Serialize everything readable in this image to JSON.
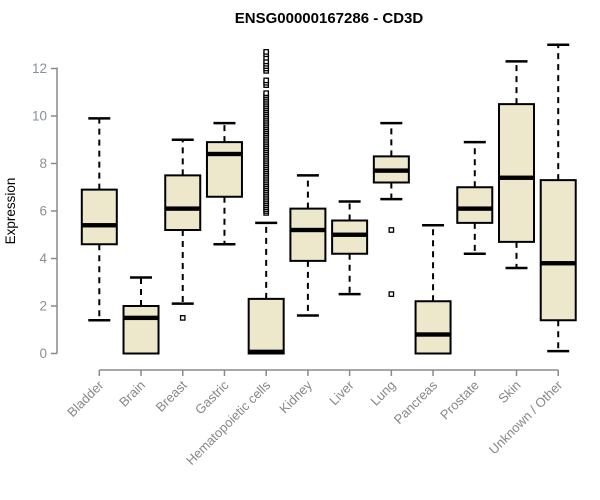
{
  "chart_data": {
    "type": "boxplot",
    "title": "ENSG00000167286 - CD3D",
    "ylabel": "Expression",
    "xlabel": "",
    "ylim": [
      0,
      13.2
    ],
    "y_ticks": [
      0,
      2,
      4,
      6,
      8,
      10,
      12
    ],
    "grid": false,
    "legend": "none",
    "categories": [
      "Bladder",
      "Brain",
      "Breast",
      "Gastric",
      "Hematopoietic cells",
      "Kidney",
      "Liver",
      "Lung",
      "Pancreas",
      "Prostate",
      "Skin",
      "Unknown / Other"
    ],
    "series": [
      {
        "name": "Bladder",
        "whisker_low": 1.4,
        "q1": 4.6,
        "median": 5.4,
        "q3": 6.9,
        "whisker_high": 9.9,
        "outliers": []
      },
      {
        "name": "Brain",
        "whisker_low": 0.0,
        "q1": 0.0,
        "median": 1.5,
        "q3": 2.0,
        "whisker_high": 3.2,
        "outliers": []
      },
      {
        "name": "Breast",
        "whisker_low": 2.1,
        "q1": 5.2,
        "median": 6.1,
        "q3": 7.5,
        "whisker_high": 9.0,
        "outliers": [
          1.5
        ]
      },
      {
        "name": "Gastric",
        "whisker_low": 4.6,
        "q1": 6.6,
        "median": 8.4,
        "q3": 8.9,
        "whisker_high": 9.7,
        "outliers": []
      },
      {
        "name": "Hematopoietic cells",
        "whisker_low": 0.0,
        "q1": 0.0,
        "median": 0.07,
        "q3": 2.3,
        "whisker_high": 5.5,
        "outliers": [
          5.92,
          6.0,
          6.08,
          6.16,
          6.24,
          6.32,
          6.4,
          6.48,
          6.56,
          6.64,
          6.72,
          6.8,
          6.88,
          6.96,
          7.04,
          7.12,
          7.2,
          7.28,
          7.36,
          7.44,
          7.52,
          7.6,
          7.68,
          7.76,
          7.84,
          7.92,
          8.0,
          8.08,
          8.16,
          8.24,
          8.32,
          8.4,
          8.48,
          8.56,
          8.64,
          8.72,
          8.8,
          8.88,
          8.96,
          9.04,
          9.12,
          9.2,
          9.28,
          9.36,
          9.44,
          9.52,
          9.6,
          9.68,
          9.76,
          9.84,
          9.92,
          10.0,
          10.08,
          10.16,
          10.24,
          10.32,
          10.4,
          10.48,
          10.56,
          10.64,
          10.72,
          10.8,
          10.88,
          10.96,
          11.3,
          11.4,
          11.5,
          11.9,
          12.0,
          12.1,
          12.2,
          12.3,
          12.45,
          12.6,
          12.7
        ]
      },
      {
        "name": "Kidney",
        "whisker_low": 1.6,
        "q1": 3.9,
        "median": 5.2,
        "q3": 6.1,
        "whisker_high": 7.5,
        "outliers": []
      },
      {
        "name": "Liver",
        "whisker_low": 2.5,
        "q1": 4.2,
        "median": 5.0,
        "q3": 5.6,
        "whisker_high": 6.4,
        "outliers": []
      },
      {
        "name": "Lung",
        "whisker_low": 6.5,
        "q1": 7.2,
        "median": 7.7,
        "q3": 8.3,
        "whisker_high": 9.7,
        "outliers": [
          5.2,
          2.5
        ]
      },
      {
        "name": "Pancreas",
        "whisker_low": 0.0,
        "q1": 0.0,
        "median": 0.8,
        "q3": 2.2,
        "whisker_high": 5.4,
        "outliers": []
      },
      {
        "name": "Prostate",
        "whisker_low": 4.2,
        "q1": 5.5,
        "median": 6.1,
        "q3": 7.0,
        "whisker_high": 8.9,
        "outliers": []
      },
      {
        "name": "Skin",
        "whisker_low": 3.6,
        "q1": 4.7,
        "median": 7.4,
        "q3": 10.5,
        "whisker_high": 12.3,
        "outliers": []
      },
      {
        "name": "Unknown / Other",
        "whisker_low": 0.1,
        "q1": 1.4,
        "median": 3.8,
        "q3": 7.3,
        "whisker_high": 13.0,
        "outliers": []
      }
    ],
    "colors": {
      "box_fill": "#EDE8CC",
      "box_border": "#000000",
      "median": "#000000",
      "whisker": "#000000",
      "outlier_stroke": "#000000",
      "outlier_fill": "#ffffff",
      "axis": "#8a8a8a",
      "tick_text": "#8a9099",
      "category_text": "#878787",
      "title_text": "#000000",
      "background": "#ffffff"
    }
  }
}
